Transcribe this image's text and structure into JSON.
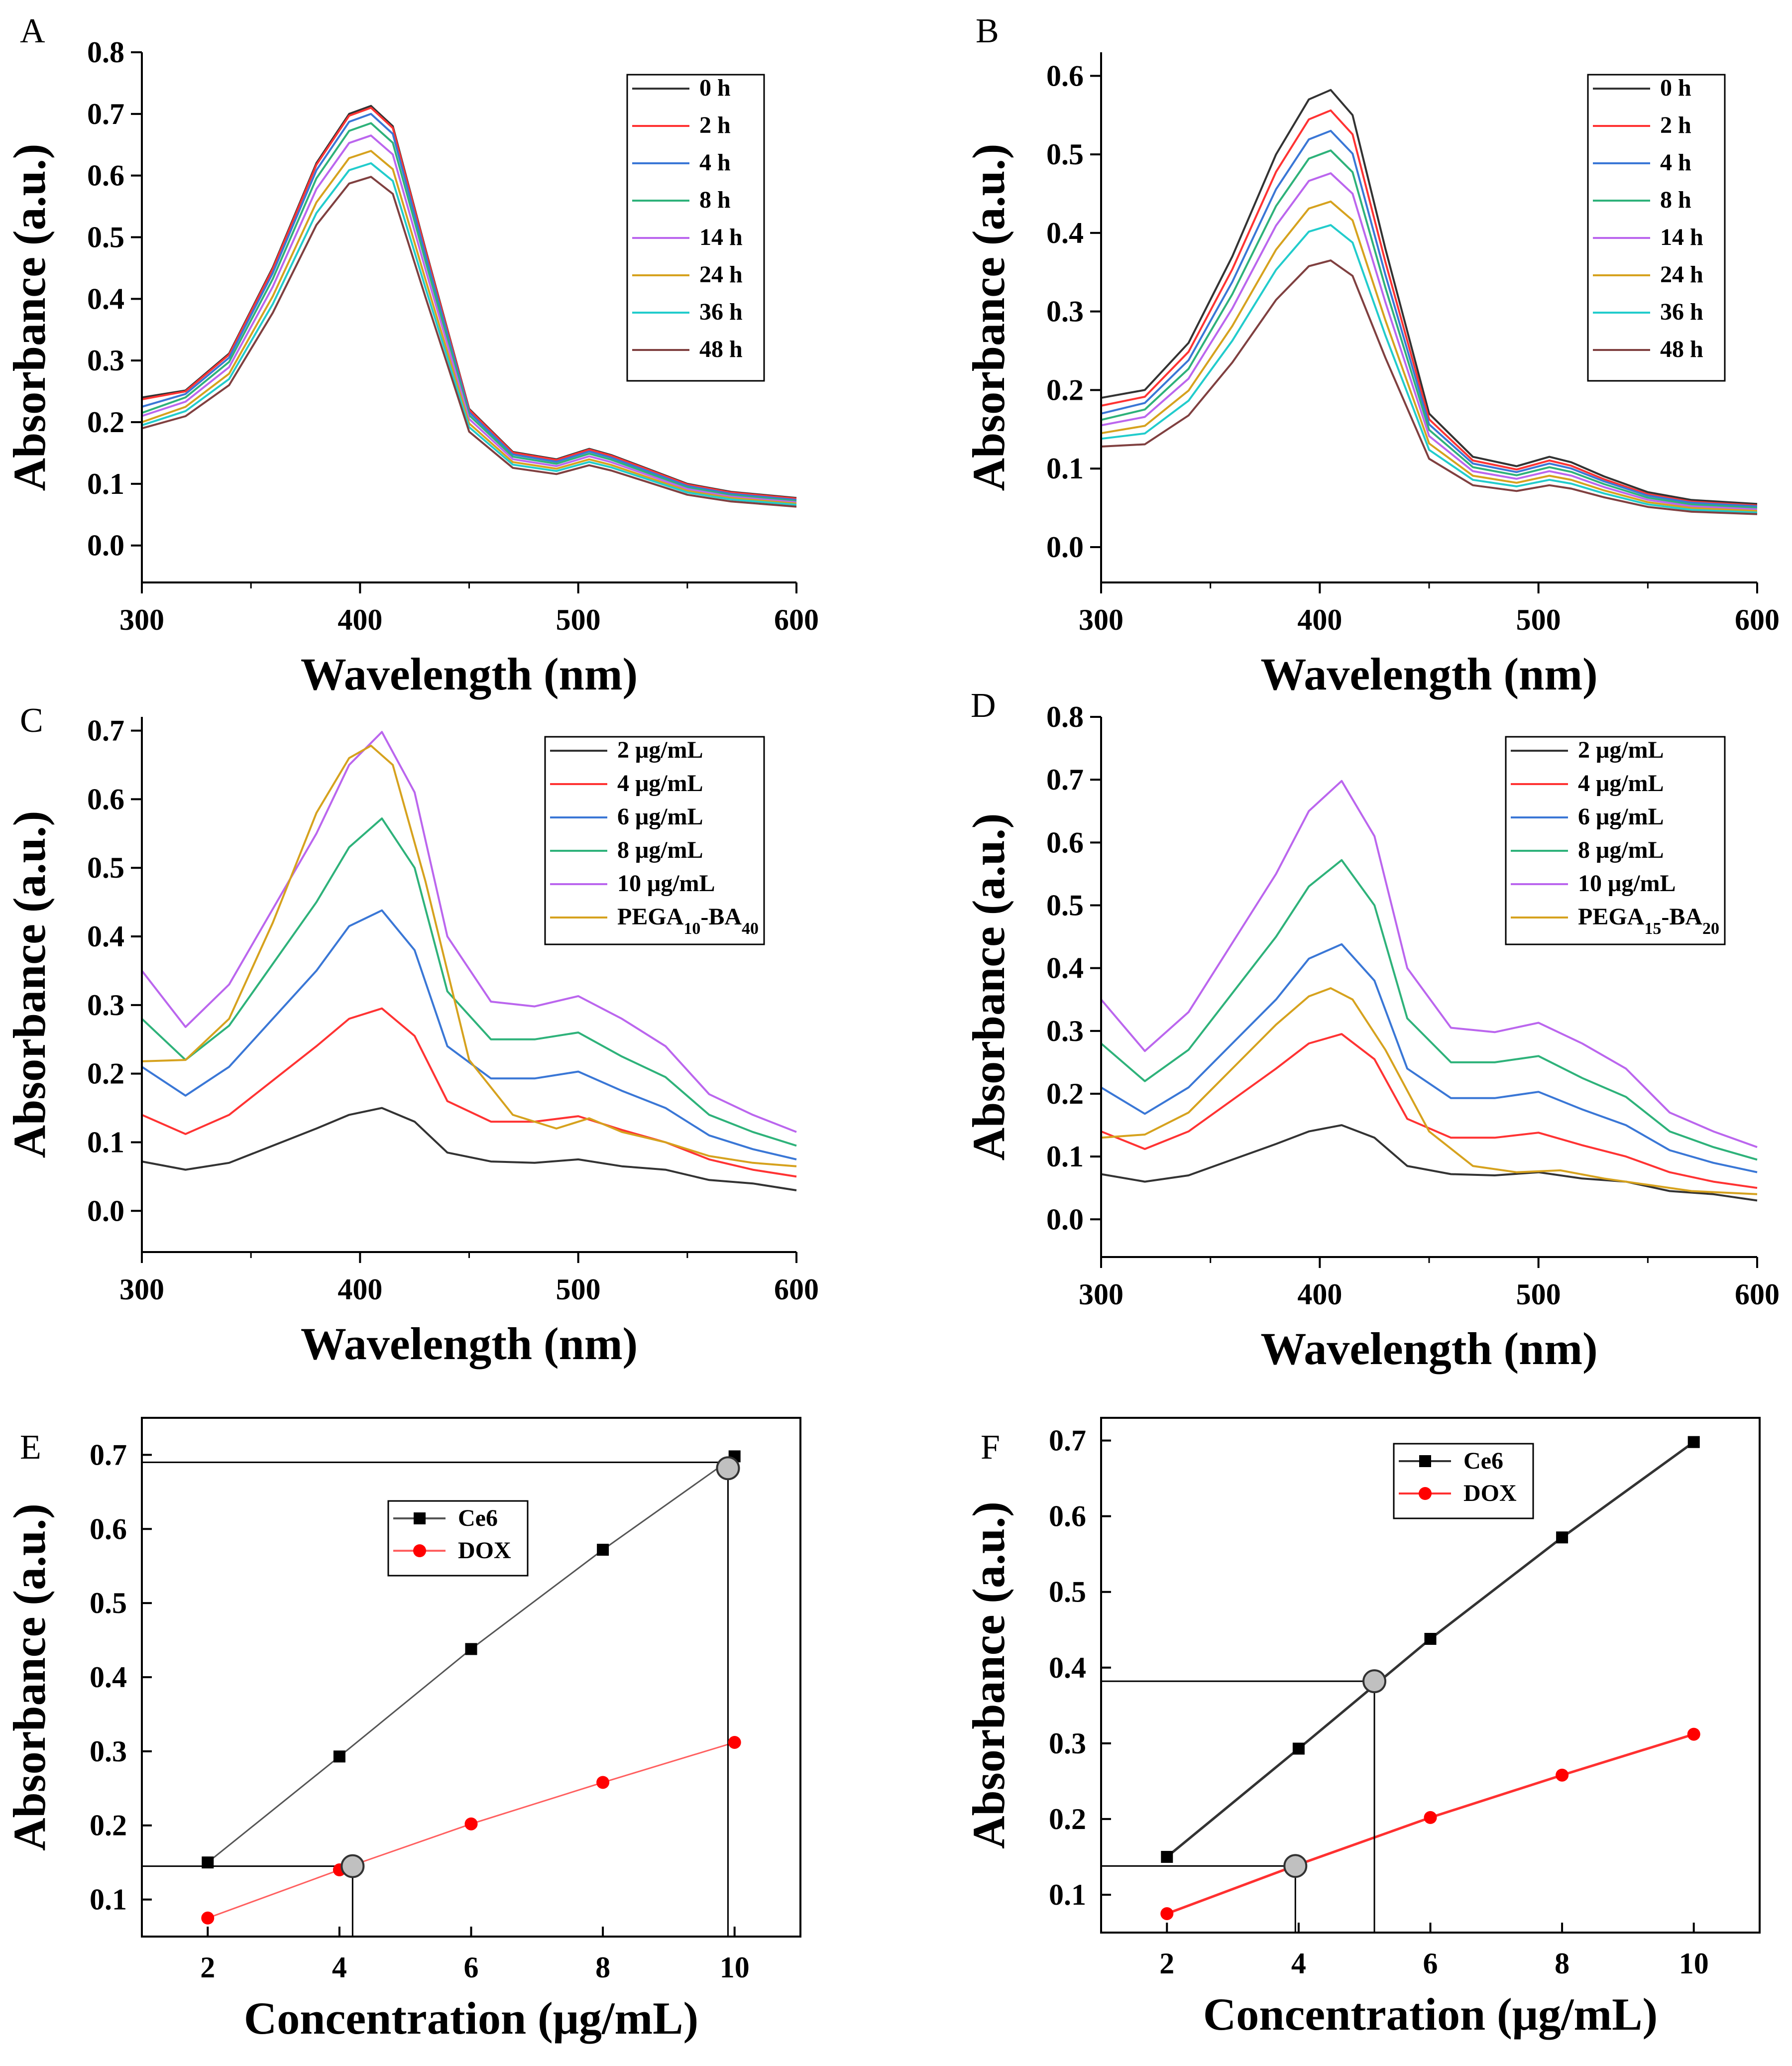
{
  "figure": {
    "background": "#ffffff"
  },
  "chart_data": [
    {
      "panel": "A",
      "type": "line",
      "xlabel": "Wavelength (nm)",
      "ylabel": "Absorbance (a.u.)",
      "xlim": [
        300,
        600
      ],
      "ylim": [
        -0.06,
        0.8
      ],
      "xticks": [
        "300",
        "400",
        "500",
        "600"
      ],
      "yticks": [
        "0.0",
        "0.1",
        "0.2",
        "0.3",
        "0.4",
        "0.5",
        "0.6",
        "0.7",
        "0.8"
      ],
      "legend_position": "top-right",
      "x": [
        300,
        320,
        340,
        360,
        380,
        395,
        405,
        415,
        430,
        450,
        470,
        490,
        505,
        515,
        530,
        550,
        570,
        600
      ],
      "shape": [
        0.24,
        0.25,
        0.31,
        0.45,
        0.62,
        0.7,
        0.713,
        0.68,
        0.48,
        0.22,
        0.15,
        0.138,
        0.155,
        0.145,
        0.125,
        0.098,
        0.085,
        0.075
      ],
      "series": [
        {
          "name": "0 h",
          "color": "#333333",
          "peak": 0.713,
          "base": 0.24,
          "tail": 0.077
        },
        {
          "name": "2 h",
          "color": "#ff3333",
          "peak": 0.71,
          "base": 0.237,
          "tail": 0.076
        },
        {
          "name": "4 h",
          "color": "#3a77d6",
          "peak": 0.7,
          "base": 0.225,
          "tail": 0.074
        },
        {
          "name": "8 h",
          "color": "#2eb27a",
          "peak": 0.685,
          "base": 0.215,
          "tail": 0.072
        },
        {
          "name": "14 h",
          "color": "#bb66ee",
          "peak": 0.665,
          "base": 0.21,
          "tail": 0.07
        },
        {
          "name": "24 h",
          "color": "#d6a21e",
          "peak": 0.64,
          "base": 0.2,
          "tail": 0.068
        },
        {
          "name": "36 h",
          "color": "#22cccc",
          "peak": 0.62,
          "base": 0.195,
          "tail": 0.066
        },
        {
          "name": "48 h",
          "color": "#804040",
          "peak": 0.598,
          "base": 0.19,
          "tail": 0.063
        }
      ]
    },
    {
      "panel": "B",
      "type": "line",
      "xlabel": "Wavelength (nm)",
      "ylabel": "Absorbance (a.u.)",
      "xlim": [
        300,
        600
      ],
      "ylim": [
        -0.045,
        0.63
      ],
      "xticks": [
        "300",
        "400",
        "500",
        "600"
      ],
      "yticks": [
        "0.0",
        "0.1",
        "0.2",
        "0.3",
        "0.4",
        "0.5",
        "0.6"
      ],
      "legend_position": "top-right",
      "x": [
        300,
        320,
        340,
        360,
        380,
        395,
        405,
        415,
        430,
        450,
        470,
        490,
        505,
        515,
        530,
        550,
        570,
        600
      ],
      "shape": [
        0.19,
        0.2,
        0.26,
        0.37,
        0.5,
        0.57,
        0.582,
        0.55,
        0.38,
        0.17,
        0.115,
        0.103,
        0.115,
        0.108,
        0.09,
        0.07,
        0.06,
        0.055
      ],
      "series": [
        {
          "name": "0 h",
          "color": "#333333",
          "peak": 0.582,
          "base": 0.19,
          "tail": 0.055
        },
        {
          "name": "2 h",
          "color": "#ff3333",
          "peak": 0.556,
          "base": 0.18,
          "tail": 0.053
        },
        {
          "name": "4 h",
          "color": "#3a77d6",
          "peak": 0.53,
          "base": 0.17,
          "tail": 0.052
        },
        {
          "name": "8 h",
          "color": "#2eb27a",
          "peak": 0.505,
          "base": 0.162,
          "tail": 0.05
        },
        {
          "name": "14 h",
          "color": "#bb66ee",
          "peak": 0.476,
          "base": 0.155,
          "tail": 0.048
        },
        {
          "name": "24 h",
          "color": "#d6a21e",
          "peak": 0.44,
          "base": 0.145,
          "tail": 0.046
        },
        {
          "name": "36 h",
          "color": "#22cccc",
          "peak": 0.41,
          "base": 0.138,
          "tail": 0.044
        },
        {
          "name": "48 h",
          "color": "#804040",
          "peak": 0.365,
          "base": 0.128,
          "tail": 0.042
        }
      ]
    },
    {
      "panel": "C",
      "type": "line",
      "xlabel": "Wavelength (nm)",
      "ylabel": "Absorbance (a.u.)",
      "xlim": [
        300,
        600
      ],
      "ylim": [
        -0.06,
        0.72
      ],
      "xticks": [
        "300",
        "400",
        "500",
        "600"
      ],
      "yticks": [
        "0.0",
        "0.1",
        "0.2",
        "0.3",
        "0.4",
        "0.5",
        "0.6",
        "0.7"
      ],
      "legend_position": "top-right",
      "series": [
        {
          "name": "2 μg/mL",
          "color": "#333333",
          "x": [
            300,
            320,
            340,
            360,
            380,
            395,
            410,
            425,
            440,
            460,
            480,
            500,
            520,
            540,
            560,
            580,
            600
          ],
          "y": [
            0.072,
            0.06,
            0.07,
            0.095,
            0.12,
            0.14,
            0.15,
            0.13,
            0.085,
            0.072,
            0.07,
            0.075,
            0.065,
            0.06,
            0.045,
            0.04,
            0.03
          ]
        },
        {
          "name": "4 μg/mL",
          "color": "#ff3333",
          "x": [
            300,
            320,
            340,
            360,
            380,
            395,
            410,
            425,
            440,
            460,
            480,
            500,
            520,
            540,
            560,
            580,
            600
          ],
          "y": [
            0.14,
            0.112,
            0.14,
            0.19,
            0.24,
            0.28,
            0.295,
            0.255,
            0.16,
            0.13,
            0.13,
            0.138,
            0.118,
            0.1,
            0.075,
            0.06,
            0.05
          ]
        },
        {
          "name": "6 μg/mL",
          "color": "#3a77d6",
          "x": [
            300,
            320,
            340,
            360,
            380,
            395,
            410,
            425,
            440,
            460,
            480,
            500,
            520,
            540,
            560,
            580,
            600
          ],
          "y": [
            0.21,
            0.168,
            0.21,
            0.28,
            0.35,
            0.415,
            0.438,
            0.38,
            0.24,
            0.193,
            0.193,
            0.203,
            0.175,
            0.15,
            0.11,
            0.09,
            0.075
          ]
        },
        {
          "name": "8 μg/mL",
          "color": "#2eb27a",
          "x": [
            300,
            320,
            340,
            360,
            380,
            395,
            410,
            425,
            440,
            460,
            480,
            500,
            520,
            540,
            560,
            580,
            600
          ],
          "y": [
            0.28,
            0.22,
            0.27,
            0.36,
            0.45,
            0.53,
            0.572,
            0.5,
            0.32,
            0.25,
            0.25,
            0.26,
            0.225,
            0.195,
            0.14,
            0.115,
            0.095
          ]
        },
        {
          "name": "10 μg/mL",
          "color": "#bb66ee",
          "x": [
            300,
            320,
            340,
            360,
            380,
            395,
            410,
            425,
            440,
            460,
            480,
            500,
            520,
            540,
            560,
            580,
            600
          ],
          "y": [
            0.35,
            0.268,
            0.33,
            0.44,
            0.55,
            0.65,
            0.698,
            0.61,
            0.4,
            0.305,
            0.298,
            0.313,
            0.28,
            0.24,
            0.17,
            0.14,
            0.115
          ]
        },
        {
          "name": "PEGA10-BA40",
          "color": "#d6a21e",
          "x": [
            300,
            320,
            340,
            360,
            380,
            395,
            405,
            415,
            430,
            450,
            470,
            490,
            505,
            520,
            540,
            560,
            580,
            600
          ],
          "y": [
            0.218,
            0.22,
            0.28,
            0.42,
            0.58,
            0.66,
            0.678,
            0.65,
            0.48,
            0.22,
            0.14,
            0.12,
            0.135,
            0.115,
            0.1,
            0.08,
            0.07,
            0.065
          ]
        }
      ]
    },
    {
      "panel": "D",
      "type": "line",
      "xlabel": "Wavelength (nm)",
      "ylabel": "Absorbance (a.u.)",
      "xlim": [
        300,
        600
      ],
      "ylim": [
        -0.06,
        0.8
      ],
      "xticks": [
        "300",
        "400",
        "500",
        "600"
      ],
      "yticks": [
        "0.0",
        "0.1",
        "0.2",
        "0.3",
        "0.4",
        "0.5",
        "0.6",
        "0.7",
        "0.8"
      ],
      "legend_position": "top-right",
      "series": [
        {
          "name": "2 μg/mL",
          "color": "#333333",
          "x": [
            300,
            320,
            340,
            360,
            380,
            395,
            410,
            425,
            440,
            460,
            480,
            500,
            520,
            540,
            560,
            580,
            600
          ],
          "y": [
            0.072,
            0.06,
            0.07,
            0.095,
            0.12,
            0.14,
            0.15,
            0.13,
            0.085,
            0.072,
            0.07,
            0.075,
            0.065,
            0.06,
            0.045,
            0.04,
            0.03
          ]
        },
        {
          "name": "4 μg/mL",
          "color": "#ff3333",
          "x": [
            300,
            320,
            340,
            360,
            380,
            395,
            410,
            425,
            440,
            460,
            480,
            500,
            520,
            540,
            560,
            580,
            600
          ],
          "y": [
            0.14,
            0.112,
            0.14,
            0.19,
            0.24,
            0.28,
            0.295,
            0.255,
            0.16,
            0.13,
            0.13,
            0.138,
            0.118,
            0.1,
            0.075,
            0.06,
            0.05
          ]
        },
        {
          "name": "6 μg/mL",
          "color": "#3a77d6",
          "x": [
            300,
            320,
            340,
            360,
            380,
            395,
            410,
            425,
            440,
            460,
            480,
            500,
            520,
            540,
            560,
            580,
            600
          ],
          "y": [
            0.21,
            0.168,
            0.21,
            0.28,
            0.35,
            0.415,
            0.438,
            0.38,
            0.24,
            0.193,
            0.193,
            0.203,
            0.175,
            0.15,
            0.11,
            0.09,
            0.075
          ]
        },
        {
          "name": "8 μg/mL",
          "color": "#2eb27a",
          "x": [
            300,
            320,
            340,
            360,
            380,
            395,
            410,
            425,
            440,
            460,
            480,
            500,
            520,
            540,
            560,
            580,
            600
          ],
          "y": [
            0.28,
            0.22,
            0.27,
            0.36,
            0.45,
            0.53,
            0.572,
            0.5,
            0.32,
            0.25,
            0.25,
            0.26,
            0.225,
            0.195,
            0.14,
            0.115,
            0.095
          ]
        },
        {
          "name": "10 μg/mL",
          "color": "#bb66ee",
          "x": [
            300,
            320,
            340,
            360,
            380,
            395,
            410,
            425,
            440,
            460,
            480,
            500,
            520,
            540,
            560,
            580,
            600
          ],
          "y": [
            0.35,
            0.268,
            0.33,
            0.44,
            0.55,
            0.65,
            0.698,
            0.61,
            0.4,
            0.305,
            0.298,
            0.313,
            0.28,
            0.24,
            0.17,
            0.14,
            0.115
          ]
        },
        {
          "name": "PEGA15-BA20",
          "color": "#d6a21e",
          "x": [
            300,
            320,
            340,
            360,
            380,
            395,
            405,
            415,
            430,
            450,
            470,
            490,
            510,
            530,
            550,
            570,
            600
          ],
          "y": [
            0.13,
            0.135,
            0.17,
            0.24,
            0.31,
            0.355,
            0.368,
            0.35,
            0.27,
            0.14,
            0.085,
            0.075,
            0.078,
            0.065,
            0.055,
            0.045,
            0.04
          ]
        }
      ]
    },
    {
      "panel": "E",
      "type": "scatter",
      "xlabel": "Concentration (μg/mL)",
      "ylabel": "Absorbance (a.u.)",
      "xlim": [
        1,
        11
      ],
      "ylim": [
        0.05,
        0.75
      ],
      "xticks": [
        "2",
        "4",
        "6",
        "8",
        "10"
      ],
      "yticks": [
        "0.1",
        "0.2",
        "0.3",
        "0.4",
        "0.5",
        "0.6",
        "0.7"
      ],
      "legend_position": "upper-left",
      "series": [
        {
          "name": "Ce6",
          "color": "#000000",
          "marker": "square",
          "line_color": "#555555",
          "x": [
            2,
            4,
            6,
            8,
            10
          ],
          "y": [
            0.15,
            0.293,
            0.438,
            0.572,
            0.698
          ]
        },
        {
          "name": "DOX",
          "color": "#ff0000",
          "marker": "circle",
          "line_color": "#ff6060",
          "x": [
            2,
            4,
            6,
            8,
            10
          ],
          "y": [
            0.075,
            0.14,
            0.202,
            0.258,
            0.312
          ]
        }
      ],
      "reference_points": [
        {
          "x": 9.9,
          "y": 0.682,
          "guide_y": 0.69
        },
        {
          "x": 4.2,
          "y": 0.145,
          "guide_y": 0.145
        }
      ]
    },
    {
      "panel": "F",
      "type": "scatter",
      "xlabel": "Concentration (μg/mL)",
      "ylabel": "Absorbance (a.u.)",
      "xlim": [
        1,
        11
      ],
      "ylim": [
        0.05,
        0.73
      ],
      "xticks": [
        "2",
        "4",
        "6",
        "8",
        "10"
      ],
      "yticks": [
        "0.1",
        "0.2",
        "0.3",
        "0.4",
        "0.5",
        "0.6",
        "0.7"
      ],
      "legend_position": "upper-left",
      "series": [
        {
          "name": "Ce6",
          "color": "#000000",
          "marker": "square",
          "line_color": "#333333",
          "x": [
            2,
            4,
            6,
            8,
            10
          ],
          "y": [
            0.15,
            0.293,
            0.438,
            0.572,
            0.698
          ]
        },
        {
          "name": "DOX",
          "color": "#ff0000",
          "marker": "circle",
          "line_color": "#ff3030",
          "x": [
            2,
            4,
            6,
            8,
            10
          ],
          "y": [
            0.075,
            0.14,
            0.202,
            0.258,
            0.312
          ]
        }
      ],
      "reference_points": [
        {
          "x": 5.15,
          "y": 0.382,
          "guide_y": 0.382
        },
        {
          "x": 3.95,
          "y": 0.138,
          "guide_y": 0.138
        }
      ]
    }
  ]
}
